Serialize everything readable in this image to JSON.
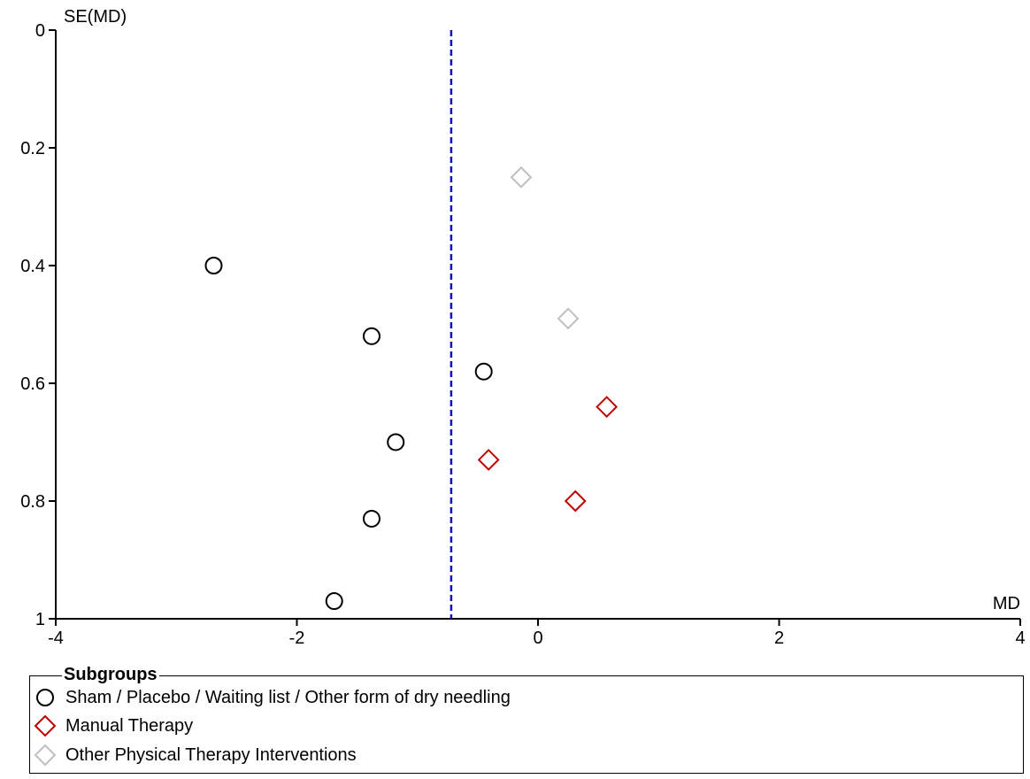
{
  "chart_data": {
    "type": "scatter",
    "title": "",
    "xlabel": "MD",
    "ylabel": "SE(MD)",
    "xlim": [
      -4,
      4
    ],
    "ylim": [
      0,
      1
    ],
    "y_inverted": true,
    "x_ticks": [
      "-4",
      "-2",
      "0",
      "2",
      "4"
    ],
    "x_tick_values": [
      -4,
      -2,
      0,
      2,
      4
    ],
    "y_ticks": [
      "0",
      "0.2",
      "0.4",
      "0.6",
      "0.8",
      "1"
    ],
    "y_tick_values": [
      0,
      0.2,
      0.4,
      0.6,
      0.8,
      1
    ],
    "reference_line_md": -0.72,
    "legend_title": "Subgroups",
    "series": [
      {
        "name": "Sham / Placebo / Waiting list / Other form of dry needling",
        "marker": "circle",
        "color": "#000000",
        "points": [
          {
            "x": -2.69,
            "y": 0.4
          },
          {
            "x": -1.38,
            "y": 0.52
          },
          {
            "x": -0.45,
            "y": 0.58
          },
          {
            "x": -1.18,
            "y": 0.7
          },
          {
            "x": -1.38,
            "y": 0.83
          },
          {
            "x": -1.69,
            "y": 0.97
          }
        ]
      },
      {
        "name": "Manual Therapy",
        "marker": "diamond",
        "color": "#c00000",
        "points": [
          {
            "x": 0.57,
            "y": 0.64
          },
          {
            "x": -0.41,
            "y": 0.73
          },
          {
            "x": 0.31,
            "y": 0.8
          }
        ]
      },
      {
        "name": "Other Physical Therapy Interventions",
        "marker": "diamond",
        "color": "#c0c0c0",
        "points": [
          {
            "x": -0.14,
            "y": 0.25
          },
          {
            "x": 0.25,
            "y": 0.49
          }
        ]
      }
    ]
  }
}
